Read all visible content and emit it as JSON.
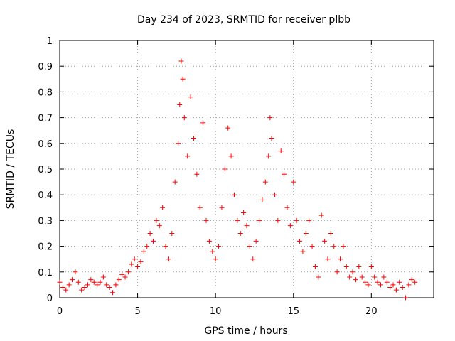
{
  "chart_data": {
    "type": "scatter",
    "title": "Day 234 of 2023, SRMTID for receiver plbb",
    "xlabel": "GPS time / hours",
    "ylabel": "SRMTID / TECUs",
    "xlim": [
      0,
      24
    ],
    "ylim": [
      0,
      1
    ],
    "xticks": [
      0,
      5,
      10,
      15,
      20
    ],
    "xtick_labels": [
      "0",
      "5",
      "10",
      "15",
      "20"
    ],
    "yticks": [
      0,
      0.1,
      0.2,
      0.3,
      0.4,
      0.5,
      0.6,
      0.7,
      0.8,
      0.9,
      1
    ],
    "ytick_labels": [
      "0",
      "0.1",
      "0.2",
      "0.3",
      "0.4",
      "0.5",
      "0.6",
      "0.7",
      "0.8",
      "0.9",
      "1"
    ],
    "grid": true,
    "marker": "plus",
    "color": "#ff0000",
    "series": [
      {
        "name": "SRMTID",
        "points": [
          [
            0.0,
            0.06
          ],
          [
            0.2,
            0.04
          ],
          [
            0.4,
            0.03
          ],
          [
            0.6,
            0.05
          ],
          [
            0.8,
            0.07
          ],
          [
            1.0,
            0.1
          ],
          [
            1.2,
            0.06
          ],
          [
            1.4,
            0.03
          ],
          [
            1.6,
            0.04
          ],
          [
            1.8,
            0.05
          ],
          [
            2.0,
            0.07
          ],
          [
            2.2,
            0.06
          ],
          [
            2.4,
            0.05
          ],
          [
            2.6,
            0.06
          ],
          [
            2.8,
            0.08
          ],
          [
            3.0,
            0.05
          ],
          [
            3.2,
            0.04
          ],
          [
            3.4,
            0.02
          ],
          [
            3.6,
            0.05
          ],
          [
            3.8,
            0.07
          ],
          [
            4.0,
            0.09
          ],
          [
            4.2,
            0.08
          ],
          [
            4.4,
            0.1
          ],
          [
            4.6,
            0.13
          ],
          [
            4.8,
            0.15
          ],
          [
            5.0,
            0.12
          ],
          [
            5.2,
            0.14
          ],
          [
            5.4,
            0.18
          ],
          [
            5.6,
            0.2
          ],
          [
            5.8,
            0.25
          ],
          [
            6.0,
            0.22
          ],
          [
            6.2,
            0.3
          ],
          [
            6.4,
            0.28
          ],
          [
            6.6,
            0.35
          ],
          [
            6.8,
            0.2
          ],
          [
            7.0,
            0.15
          ],
          [
            7.2,
            0.25
          ],
          [
            7.4,
            0.45
          ],
          [
            7.6,
            0.6
          ],
          [
            7.7,
            0.75
          ],
          [
            7.8,
            0.92
          ],
          [
            7.9,
            0.85
          ],
          [
            8.0,
            0.7
          ],
          [
            8.2,
            0.55
          ],
          [
            8.4,
            0.78
          ],
          [
            8.6,
            0.62
          ],
          [
            8.8,
            0.48
          ],
          [
            9.0,
            0.35
          ],
          [
            9.2,
            0.68
          ],
          [
            9.4,
            0.3
          ],
          [
            9.6,
            0.22
          ],
          [
            9.8,
            0.18
          ],
          [
            10.0,
            0.15
          ],
          [
            10.2,
            0.2
          ],
          [
            10.4,
            0.35
          ],
          [
            10.6,
            0.5
          ],
          [
            10.8,
            0.66
          ],
          [
            11.0,
            0.55
          ],
          [
            11.2,
            0.4
          ],
          [
            11.4,
            0.3
          ],
          [
            11.6,
            0.25
          ],
          [
            11.8,
            0.33
          ],
          [
            12.0,
            0.28
          ],
          [
            12.2,
            0.2
          ],
          [
            12.4,
            0.15
          ],
          [
            12.6,
            0.22
          ],
          [
            12.8,
            0.3
          ],
          [
            13.0,
            0.38
          ],
          [
            13.2,
            0.45
          ],
          [
            13.4,
            0.55
          ],
          [
            13.5,
            0.7
          ],
          [
            13.6,
            0.62
          ],
          [
            13.8,
            0.4
          ],
          [
            14.0,
            0.3
          ],
          [
            14.2,
            0.57
          ],
          [
            14.4,
            0.48
          ],
          [
            14.6,
            0.35
          ],
          [
            14.8,
            0.28
          ],
          [
            15.0,
            0.45
          ],
          [
            15.2,
            0.3
          ],
          [
            15.4,
            0.22
          ],
          [
            15.6,
            0.18
          ],
          [
            15.8,
            0.25
          ],
          [
            16.0,
            0.3
          ],
          [
            16.2,
            0.2
          ],
          [
            16.4,
            0.12
          ],
          [
            16.6,
            0.08
          ],
          [
            16.8,
            0.32
          ],
          [
            17.0,
            0.22
          ],
          [
            17.2,
            0.15
          ],
          [
            17.4,
            0.25
          ],
          [
            17.6,
            0.2
          ],
          [
            17.8,
            0.1
          ],
          [
            18.0,
            0.15
          ],
          [
            18.2,
            0.2
          ],
          [
            18.4,
            0.12
          ],
          [
            18.6,
            0.08
          ],
          [
            18.8,
            0.1
          ],
          [
            19.0,
            0.07
          ],
          [
            19.2,
            0.12
          ],
          [
            19.4,
            0.08
          ],
          [
            19.6,
            0.06
          ],
          [
            19.8,
            0.05
          ],
          [
            20.0,
            0.12
          ],
          [
            20.2,
            0.08
          ],
          [
            20.4,
            0.06
          ],
          [
            20.6,
            0.05
          ],
          [
            20.8,
            0.08
          ],
          [
            21.0,
            0.06
          ],
          [
            21.2,
            0.04
          ],
          [
            21.4,
            0.05
          ],
          [
            21.6,
            0.03
          ],
          [
            21.8,
            0.06
          ],
          [
            22.0,
            0.04
          ],
          [
            22.2,
            0.0
          ],
          [
            22.4,
            0.05
          ],
          [
            22.6,
            0.07
          ],
          [
            22.8,
            0.06
          ]
        ]
      }
    ]
  }
}
